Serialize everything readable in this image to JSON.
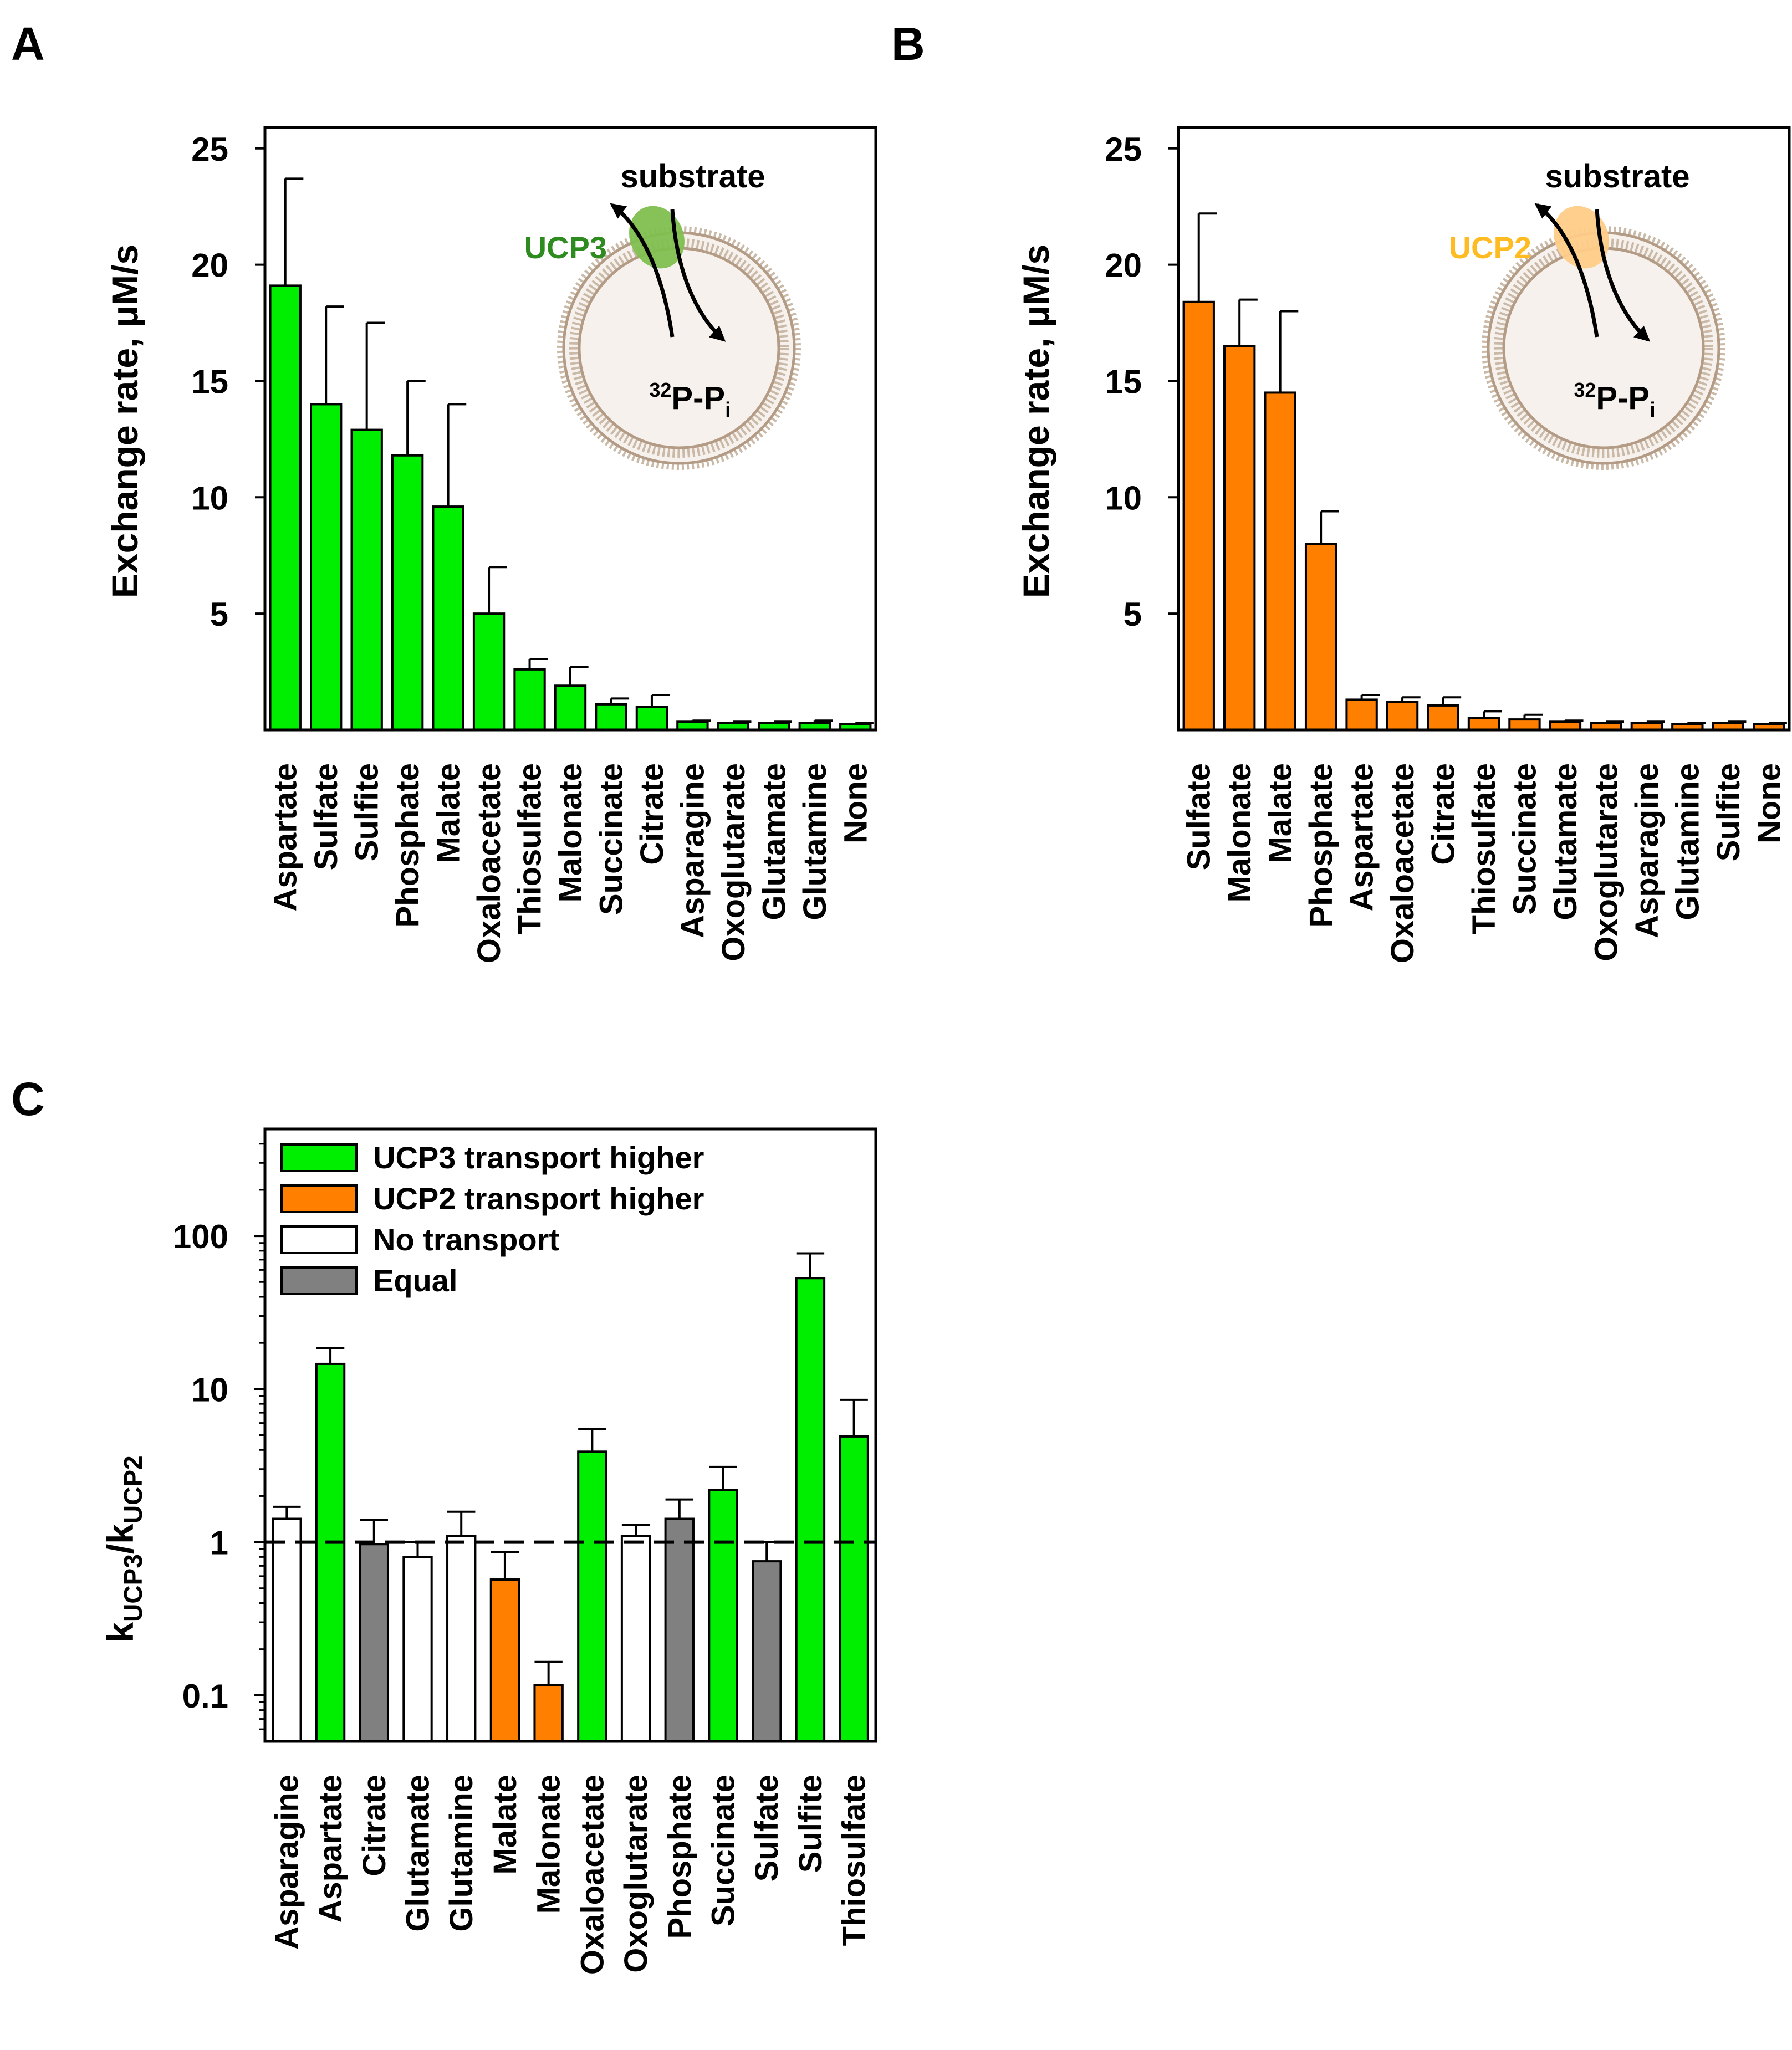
{
  "panels": {
    "A": {
      "letter": "A",
      "chart_data": {
        "type": "bar",
        "title": "",
        "xlabel": "",
        "ylabel": "Exchange rate, μM/s",
        "ylim": [
          0,
          25.9
        ],
        "yscale": "linear",
        "yticks": [
          5,
          10,
          15,
          20,
          25
        ],
        "grid": false,
        "bar_color": "#00ee00",
        "categories": [
          "Aspartate",
          "Sulfate",
          "Sulfite",
          "Phosphate",
          "Malate",
          "Oxaloacetate",
          "Thiosulfate",
          "Malonate",
          "Succinate",
          "Citrate",
          "Asparagine",
          "Oxoglutarate",
          "Glutamate",
          "Glutamine",
          "None"
        ],
        "values": [
          19.1,
          14.0,
          12.9,
          11.8,
          9.6,
          5.0,
          2.6,
          1.9,
          1.1,
          1.0,
          0.35,
          0.3,
          0.3,
          0.3,
          0.25
        ],
        "errors": [
          4.6,
          4.2,
          4.6,
          3.2,
          4.4,
          2.0,
          0.45,
          0.8,
          0.25,
          0.5,
          0.05,
          0.05,
          0.05,
          0.1,
          0.05
        ],
        "inset": {
          "substrate_label": "substrate",
          "protein_label": "UCP3",
          "protein_color": "#2e8b1f",
          "blob_color": "#7fbf4f",
          "isotope_sup": "32",
          "isotope_main": "P-P",
          "isotope_sub": "i"
        }
      }
    },
    "B": {
      "letter": "B",
      "chart_data": {
        "type": "bar",
        "title": "",
        "xlabel": "",
        "ylabel": "Exchange rate, μM/s",
        "ylim": [
          0,
          25.9
        ],
        "yscale": "linear",
        "yticks": [
          5,
          10,
          15,
          20,
          25
        ],
        "grid": false,
        "bar_color": "#ff7f00",
        "categories": [
          "Sulfate",
          "Malonate",
          "Malate",
          "Phosphate",
          "Aspartate",
          "Oxaloacetate",
          "Citrate",
          "Thiosulfate",
          "Succinate",
          "Glutamate",
          "Oxoglutarate",
          "Asparagine",
          "Glutamine",
          "Sulfite",
          "None"
        ],
        "values": [
          18.4,
          16.5,
          14.5,
          8.0,
          1.3,
          1.2,
          1.05,
          0.5,
          0.45,
          0.35,
          0.3,
          0.3,
          0.25,
          0.3,
          0.25
        ],
        "errors": [
          3.8,
          2.0,
          3.5,
          1.4,
          0.2,
          0.2,
          0.35,
          0.3,
          0.2,
          0.05,
          0.05,
          0.05,
          0.05,
          0.05,
          0.05
        ],
        "inset": {
          "substrate_label": "substrate",
          "protein_label": "UCP2",
          "protein_color": "#ffbb22",
          "blob_color": "#ffcc88",
          "isotope_sup": "32",
          "isotope_main": "P-P",
          "isotope_sub": "i"
        }
      }
    },
    "C": {
      "letter": "C",
      "chart_data": {
        "type": "bar",
        "title": "",
        "xlabel": "",
        "ylabel_main": "k",
        "ylabel_sub1": "UCP3",
        "ylabel_slash": "/k",
        "ylabel_sub2": "UCP2",
        "yscale": "log",
        "ylim": [
          0.05,
          500
        ],
        "yticks": [
          0.1,
          1,
          10,
          100
        ],
        "ytick_labels": [
          "0.1",
          "1",
          "10",
          "100"
        ],
        "reference_line": 1,
        "grid": false,
        "legend_position": "top-left",
        "legend": [
          {
            "label": "UCP3 transport higher",
            "color": "#00ee00"
          },
          {
            "label": "UCP2 transport higher",
            "color": "#ff7f00"
          },
          {
            "label": "No transport",
            "color": "#ffffff"
          },
          {
            "label": "Equal",
            "color": "#808080"
          }
        ],
        "categories": [
          "Asparagine",
          "Aspartate",
          "Citrate",
          "Glutamate",
          "Glutamine",
          "Malate",
          "Malonate",
          "Oxaloacetate",
          "Oxoglutarate",
          "Phosphate",
          "Succinate",
          "Sulfate",
          "Sulfite",
          "Thiosulfate"
        ],
        "values": [
          1.42,
          14.6,
          0.97,
          0.8,
          1.1,
          0.57,
          0.117,
          3.9,
          1.1,
          1.42,
          2.2,
          0.75,
          53,
          4.9
        ],
        "error_tops": [
          1.7,
          18.5,
          1.4,
          1.0,
          1.58,
          0.86,
          0.165,
          5.5,
          1.3,
          1.9,
          3.1,
          1.0,
          77,
          8.5
        ],
        "colors": [
          "#ffffff",
          "#00ee00",
          "#808080",
          "#ffffff",
          "#ffffff",
          "#ff7f00",
          "#ff7f00",
          "#00ee00",
          "#ffffff",
          "#808080",
          "#00ee00",
          "#808080",
          "#00ee00",
          "#00ee00"
        ]
      }
    }
  }
}
